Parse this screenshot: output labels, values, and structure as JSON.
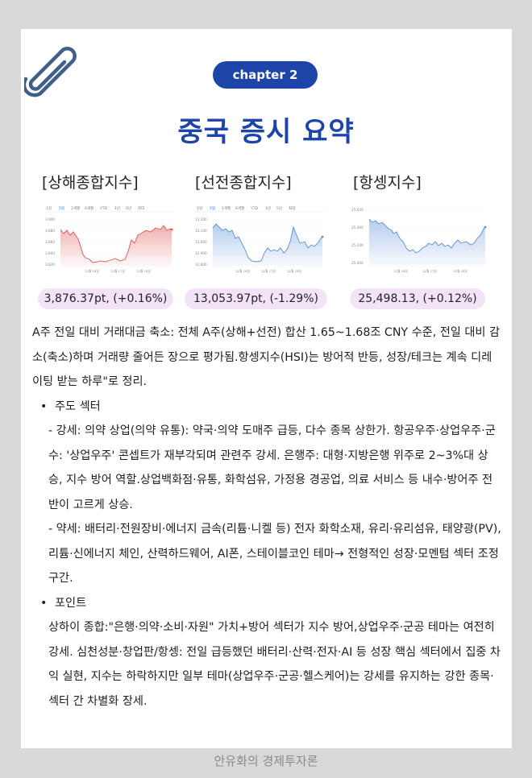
{
  "header": {
    "chapter_label": "chapter 2",
    "title": "중국 증시 요약"
  },
  "indices": [
    {
      "name": "[상해종합지수]",
      "value": "3,876.37pt, (+0.16%)",
      "tabs": [
        "1일",
        "5일",
        "1개월",
        "6개월",
        "YTD",
        "1년",
        "5년",
        "최대"
      ],
      "y_ticks": [
        "3,900",
        "3,880",
        "3,860",
        "3,840",
        "3,820"
      ],
      "x_ticks": [
        "12월 16일",
        "12월 17일",
        "12월 18일"
      ],
      "line_color": "#e05252"
    },
    {
      "name": "[선전종합지수]",
      "value": "13,053.97pt, (-1.29%)",
      "tabs": [
        "1일",
        "5일",
        "1개월",
        "6개월",
        "YTD",
        "1년",
        "5년",
        "최대"
      ],
      "y_ticks": [
        "13,200",
        "13,100",
        "13,000",
        "12,900",
        "12,800"
      ],
      "x_ticks": [
        "12월 16일",
        "12월 17일",
        "12월 18일"
      ],
      "line_color": "#5b8fd9"
    },
    {
      "name": "[항셍지수]",
      "value": "25,498.13, (+0.12%)",
      "tabs": [],
      "y_ticks": [
        "25,600",
        "25,400",
        "25,200",
        "25,000"
      ],
      "x_ticks": [
        "12월 16일",
        "12월 17일",
        "12월 18일"
      ],
      "line_color": "#5b8fd9"
    }
  ],
  "summary": "A주 전일 대비 거래대금 축소: 전체 A주(상해+선전) 합산 1.65~1.68조 CNY 수준, 전일 대비 감소(축소)하며 거래량 줄어든 장으로 평가됨.항셍지수(HSI)는 방어적 반등, 성장/테크는 계속 디레이팅 받는 하루\"로 정리.",
  "sections": {
    "leading_title": "주도 섹터",
    "strong": "- 강세: 의약 상업(의약 유통): 약국·의약 도매주 급등, 다수 종목 상한가. 항공우주·상업우주·군수: '상업우주' 콘셉트가 재부각되며 관련주 강세. 은행주: 대형·지방은행 위주로 2~3%대 상승, 지수 방어 역할.상업백화점·유통, 화학섬유, 가정용 경공업, 의료 서비스 등 내수·방어주 전반이 고르게 상승.",
    "weak": "- 약세: 배터리·전원장비·에너지 금속(리튬·니켈 등) 전자 화학소재, 유리·유리섬유, 태양광(PV), 리튬·신에너지 체인, 산력하드웨어, AI폰, 스테이블코인 테마→ 전형적인 성장·모멘텀 섹터 조정 구간.",
    "point_title": "포인트",
    "point": "상하이 종합:\"은행·의약·소비·자원\" 가치+방어 섹터가 지수 방어,상업우주·군공 테마는 여전히 강세. 심천성분·창업판/항셍: 전일 급등했던 배터리·산력·전자·AI 등 성장 핵심 섹터에서 집중 차익 실현, 지수는 하락하지만 일부 테마(상업우주·군공·헬스케어)는 강세를 유지하는 강한 종목·섹터 간 차별화 장세."
  },
  "footer": "안유화의 경제투자론"
}
